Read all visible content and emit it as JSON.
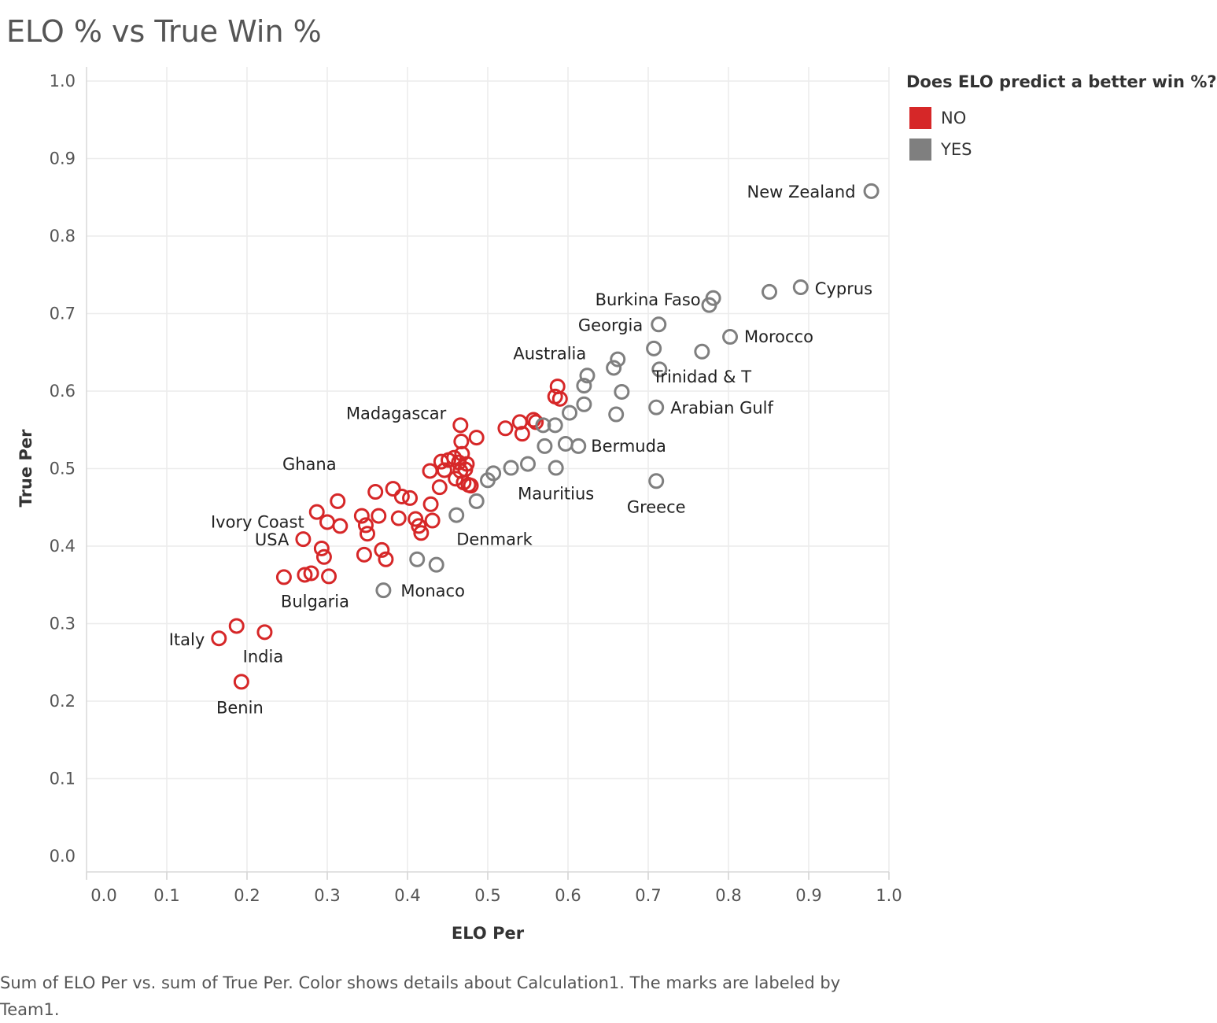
{
  "chart_data": {
    "type": "scatter",
    "title": "ELO % vs True Win %",
    "xlabel": "ELO Per",
    "ylabel": "True Per",
    "xlim": [
      0.0,
      1.0
    ],
    "ylim": [
      0.0,
      1.0
    ],
    "x_ticks": [
      "0.0",
      "0.1",
      "0.2",
      "0.3",
      "0.4",
      "0.5",
      "0.6",
      "0.7",
      "0.8",
      "0.9",
      "1.0"
    ],
    "y_ticks": [
      "0.0",
      "0.1",
      "0.2",
      "0.3",
      "0.4",
      "0.5",
      "0.6",
      "0.7",
      "0.8",
      "0.9",
      "1.0"
    ],
    "grid": true,
    "legend_placement": "top-right",
    "legend": {
      "title": "Does ELO predict a better win %?",
      "entries": [
        {
          "label": "NO",
          "color": "#d62728"
        },
        {
          "label": "YES",
          "color": "#7f7f7f"
        }
      ]
    },
    "series": [
      {
        "name": "NO",
        "color": "#d62728",
        "points": [
          {
            "x": 0.165,
            "y": 0.281,
            "label": "Italy"
          },
          {
            "x": 0.187,
            "y": 0.297,
            "label": ""
          },
          {
            "x": 0.222,
            "y": 0.289,
            "label": "India"
          },
          {
            "x": 0.193,
            "y": 0.225,
            "label": "Benin"
          },
          {
            "x": 0.246,
            "y": 0.36,
            "label": "Bulgaria"
          },
          {
            "x": 0.272,
            "y": 0.363,
            "label": ""
          },
          {
            "x": 0.28,
            "y": 0.365,
            "label": ""
          },
          {
            "x": 0.302,
            "y": 0.361,
            "label": ""
          },
          {
            "x": 0.27,
            "y": 0.409,
            "label": "USA"
          },
          {
            "x": 0.293,
            "y": 0.397,
            "label": ""
          },
          {
            "x": 0.296,
            "y": 0.386,
            "label": ""
          },
          {
            "x": 0.287,
            "y": 0.444,
            "label": "Ivory Coast"
          },
          {
            "x": 0.3,
            "y": 0.431,
            "label": ""
          },
          {
            "x": 0.313,
            "y": 0.458,
            "label": "Ghana"
          },
          {
            "x": 0.316,
            "y": 0.426,
            "label": ""
          },
          {
            "x": 0.343,
            "y": 0.439,
            "label": ""
          },
          {
            "x": 0.348,
            "y": 0.427,
            "label": ""
          },
          {
            "x": 0.35,
            "y": 0.416,
            "label": ""
          },
          {
            "x": 0.346,
            "y": 0.389,
            "label": ""
          },
          {
            "x": 0.36,
            "y": 0.47,
            "label": ""
          },
          {
            "x": 0.364,
            "y": 0.439,
            "label": ""
          },
          {
            "x": 0.368,
            "y": 0.395,
            "label": ""
          },
          {
            "x": 0.373,
            "y": 0.383,
            "label": ""
          },
          {
            "x": 0.382,
            "y": 0.474,
            "label": ""
          },
          {
            "x": 0.389,
            "y": 0.436,
            "label": ""
          },
          {
            "x": 0.393,
            "y": 0.464,
            "label": ""
          },
          {
            "x": 0.403,
            "y": 0.462,
            "label": ""
          },
          {
            "x": 0.41,
            "y": 0.435,
            "label": ""
          },
          {
            "x": 0.414,
            "y": 0.426,
            "label": ""
          },
          {
            "x": 0.417,
            "y": 0.417,
            "label": ""
          },
          {
            "x": 0.429,
            "y": 0.454,
            "label": ""
          },
          {
            "x": 0.431,
            "y": 0.433,
            "label": ""
          },
          {
            "x": 0.428,
            "y": 0.497,
            "label": ""
          },
          {
            "x": 0.44,
            "y": 0.476,
            "label": ""
          },
          {
            "x": 0.442,
            "y": 0.509,
            "label": ""
          },
          {
            "x": 0.446,
            "y": 0.498,
            "label": ""
          },
          {
            "x": 0.451,
            "y": 0.511,
            "label": ""
          },
          {
            "x": 0.458,
            "y": 0.514,
            "label": ""
          },
          {
            "x": 0.46,
            "y": 0.487,
            "label": ""
          },
          {
            "x": 0.464,
            "y": 0.508,
            "label": ""
          },
          {
            "x": 0.466,
            "y": 0.497,
            "label": ""
          },
          {
            "x": 0.468,
            "y": 0.519,
            "label": ""
          },
          {
            "x": 0.47,
            "y": 0.482,
            "label": ""
          },
          {
            "x": 0.472,
            "y": 0.499,
            "label": ""
          },
          {
            "x": 0.474,
            "y": 0.506,
            "label": ""
          },
          {
            "x": 0.476,
            "y": 0.479,
            "label": ""
          },
          {
            "x": 0.479,
            "y": 0.478,
            "label": ""
          },
          {
            "x": 0.466,
            "y": 0.556,
            "label": "Madagascar"
          },
          {
            "x": 0.467,
            "y": 0.535,
            "label": ""
          },
          {
            "x": 0.486,
            "y": 0.54,
            "label": ""
          },
          {
            "x": 0.522,
            "y": 0.552,
            "label": ""
          },
          {
            "x": 0.54,
            "y": 0.56,
            "label": ""
          },
          {
            "x": 0.543,
            "y": 0.545,
            "label": ""
          },
          {
            "x": 0.557,
            "y": 0.563,
            "label": ""
          },
          {
            "x": 0.56,
            "y": 0.56,
            "label": ""
          },
          {
            "x": 0.584,
            "y": 0.593,
            "label": ""
          },
          {
            "x": 0.59,
            "y": 0.59,
            "label": ""
          },
          {
            "x": 0.587,
            "y": 0.606,
            "label": ""
          }
        ]
      },
      {
        "name": "YES",
        "color": "#7f7f7f",
        "points": [
          {
            "x": 0.37,
            "y": 0.343,
            "label": "Monaco"
          },
          {
            "x": 0.412,
            "y": 0.383,
            "label": ""
          },
          {
            "x": 0.436,
            "y": 0.376,
            "label": ""
          },
          {
            "x": 0.461,
            "y": 0.44,
            "label": "Denmark"
          },
          {
            "x": 0.486,
            "y": 0.458,
            "label": ""
          },
          {
            "x": 0.5,
            "y": 0.485,
            "label": ""
          },
          {
            "x": 0.507,
            "y": 0.494,
            "label": ""
          },
          {
            "x": 0.529,
            "y": 0.501,
            "label": ""
          },
          {
            "x": 0.55,
            "y": 0.506,
            "label": ""
          },
          {
            "x": 0.569,
            "y": 0.556,
            "label": ""
          },
          {
            "x": 0.571,
            "y": 0.529,
            "label": ""
          },
          {
            "x": 0.584,
            "y": 0.556,
            "label": ""
          },
          {
            "x": 0.585,
            "y": 0.501,
            "label": "Mauritius"
          },
          {
            "x": 0.597,
            "y": 0.532,
            "label": ""
          },
          {
            "x": 0.602,
            "y": 0.572,
            "label": ""
          },
          {
            "x": 0.613,
            "y": 0.529,
            "label": "Bermuda"
          },
          {
            "x": 0.62,
            "y": 0.583,
            "label": ""
          },
          {
            "x": 0.62,
            "y": 0.607,
            "label": ""
          },
          {
            "x": 0.624,
            "y": 0.62,
            "label": ""
          },
          {
            "x": 0.657,
            "y": 0.63,
            "label": ""
          },
          {
            "x": 0.662,
            "y": 0.641,
            "label": "Australia"
          },
          {
            "x": 0.66,
            "y": 0.57,
            "label": ""
          },
          {
            "x": 0.667,
            "y": 0.599,
            "label": ""
          },
          {
            "x": 0.707,
            "y": 0.655,
            "label": ""
          },
          {
            "x": 0.71,
            "y": 0.579,
            "label": "Arabian Gulf"
          },
          {
            "x": 0.71,
            "y": 0.484,
            "label": "Greece"
          },
          {
            "x": 0.713,
            "y": 0.686,
            "label": "Georgia"
          },
          {
            "x": 0.714,
            "y": 0.628,
            "label": ""
          },
          {
            "x": 0.767,
            "y": 0.651,
            "label": "Trinidad & T"
          },
          {
            "x": 0.776,
            "y": 0.711,
            "label": ""
          },
          {
            "x": 0.781,
            "y": 0.72,
            "label": "Burkina Faso"
          },
          {
            "x": 0.802,
            "y": 0.67,
            "label": "Morocco"
          },
          {
            "x": 0.851,
            "y": 0.728,
            "label": ""
          },
          {
            "x": 0.89,
            "y": 0.734,
            "label": "Cyprus"
          },
          {
            "x": 0.978,
            "y": 0.858,
            "label": "New Zealand"
          }
        ]
      }
    ]
  },
  "caption": "Sum of ELO Per vs. sum of True Per.  Color shows details about Calculation1.  The marks are labeled by Team1."
}
